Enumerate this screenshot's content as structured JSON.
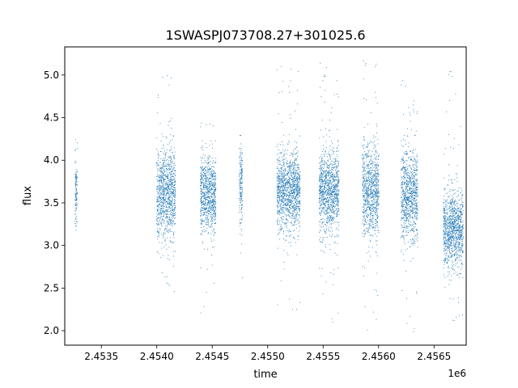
{
  "chart_data": {
    "type": "scatter",
    "title": "1SWASPJ073708.27+301025.6",
    "xlabel": "time",
    "ylabel": "flux",
    "x_offset_text": "1e6",
    "xlim": [
      2453170,
      2456790
    ],
    "ylim": [
      1.83,
      5.33
    ],
    "x_ticks": [
      2453500,
      2454000,
      2454500,
      2455000,
      2455500,
      2456000,
      2456500
    ],
    "x_tick_labels": [
      "2.4535",
      "2.4540",
      "2.4545",
      "2.4550",
      "2.4555",
      "2.4560",
      "2.4565"
    ],
    "y_ticks": [
      2.0,
      2.5,
      3.0,
      3.5,
      4.0,
      4.5,
      5.0
    ],
    "y_tick_labels": [
      "2.0",
      "2.5",
      "3.0",
      "3.5",
      "4.0",
      "4.5",
      "5.0"
    ],
    "grid": false,
    "marker_color": "#1f77b4",
    "season_clusters": [
      {
        "x_start": 2453260,
        "x_end": 2453280,
        "median": 3.65,
        "spread": 0.2,
        "min": 3.0,
        "max": 4.55
      },
      {
        "x_start": 2453995,
        "x_end": 2454165,
        "median": 3.6,
        "spread": 0.27,
        "min": 2.3,
        "max": 5.15
      },
      {
        "x_start": 2454390,
        "x_end": 2454530,
        "median": 3.6,
        "spread": 0.22,
        "min": 2.05,
        "max": 4.65
      },
      {
        "x_start": 2454740,
        "x_end": 2454770,
        "median": 3.7,
        "spread": 0.25,
        "min": 2.6,
        "max": 4.35
      },
      {
        "x_start": 2455080,
        "x_end": 2455290,
        "median": 3.65,
        "spread": 0.22,
        "min": 2.0,
        "max": 5.17
      },
      {
        "x_start": 2455460,
        "x_end": 2455640,
        "median": 3.65,
        "spread": 0.24,
        "min": 2.1,
        "max": 5.2
      },
      {
        "x_start": 2455850,
        "x_end": 2456000,
        "median": 3.65,
        "spread": 0.27,
        "min": 2.0,
        "max": 5.2
      },
      {
        "x_start": 2456200,
        "x_end": 2456350,
        "median": 3.6,
        "spread": 0.27,
        "min": 1.98,
        "max": 5.18
      },
      {
        "x_start": 2456580,
        "x_end": 2456760,
        "median": 3.2,
        "spread": 0.22,
        "min": 2.1,
        "max": 5.15
      }
    ]
  }
}
